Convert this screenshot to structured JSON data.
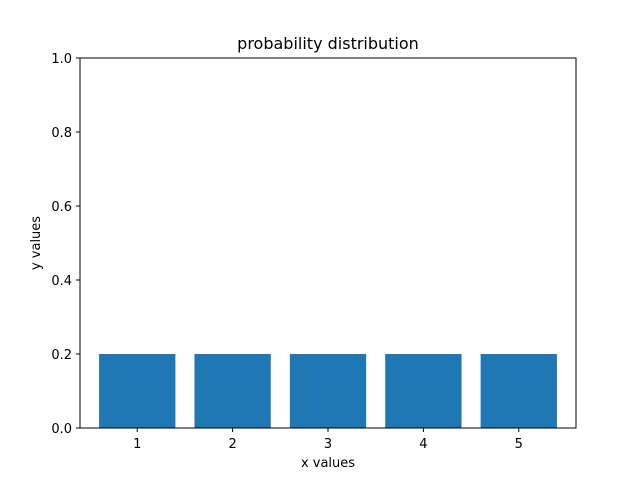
{
  "chart_data": {
    "type": "bar",
    "title": "probability distribution",
    "xlabel": "x values",
    "ylabel": "y values",
    "categories": [
      "1",
      "2",
      "3",
      "4",
      "5"
    ],
    "x": [
      1,
      2,
      3,
      4,
      5
    ],
    "values": [
      0.2,
      0.2,
      0.2,
      0.2,
      0.2
    ],
    "xlim": [
      0.4,
      5.6
    ],
    "ylim": [
      0,
      1.0
    ],
    "yticks": [
      0.0,
      0.2,
      0.4,
      0.6,
      0.8,
      1.0
    ],
    "ytick_labels": [
      "0.0",
      "0.2",
      "0.4",
      "0.6",
      "0.8",
      "1.0"
    ],
    "bar_color": "#1f77b4",
    "grid": false,
    "legend": "none"
  }
}
